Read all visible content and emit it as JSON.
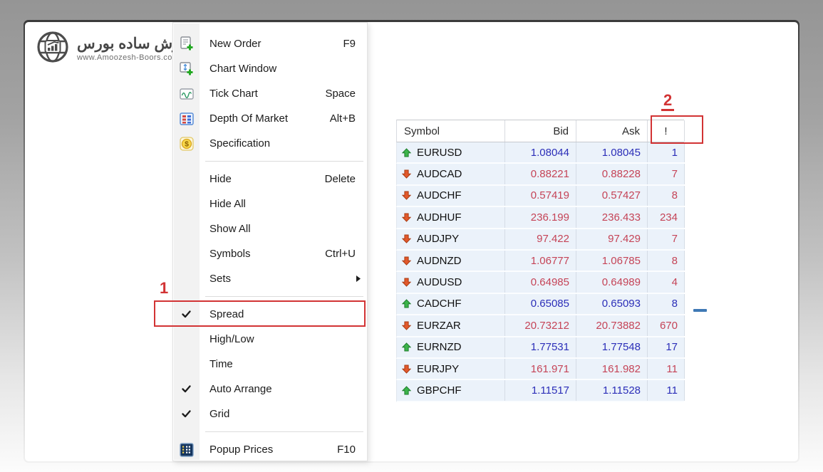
{
  "logo": {
    "title": "آموزش ساده بورس",
    "url": "www.Amoozesh-Boors.com"
  },
  "annotations": {
    "menu_highlight_label": "1",
    "column_highlight_label": "2"
  },
  "context_menu": {
    "sections": [
      {
        "items": [
          {
            "label": "New Order",
            "shortcut": "F9",
            "icon": "new-order-icon"
          },
          {
            "label": "Chart Window",
            "icon": "chart-window-icon"
          },
          {
            "label": "Tick Chart",
            "shortcut": "Space",
            "icon": "tick-chart-icon"
          },
          {
            "label": "Depth Of Market",
            "shortcut": "Alt+B",
            "icon": "depth-of-market-icon"
          },
          {
            "label": "Specification",
            "icon": "specification-icon"
          }
        ]
      },
      {
        "items": [
          {
            "label": "Hide",
            "shortcut": "Delete"
          },
          {
            "label": "Hide All"
          },
          {
            "label": "Show All"
          },
          {
            "label": "Symbols",
            "shortcut": "Ctrl+U"
          },
          {
            "label": "Sets",
            "submenu": true
          }
        ]
      },
      {
        "items": [
          {
            "label": "Spread",
            "checked": true
          },
          {
            "label": "High/Low"
          },
          {
            "label": "Time"
          },
          {
            "label": "Auto Arrange",
            "checked": true
          },
          {
            "label": "Grid",
            "checked": true
          }
        ]
      },
      {
        "items": [
          {
            "label": "Popup Prices",
            "shortcut": "F10",
            "icon": "popup-prices-icon"
          }
        ]
      }
    ]
  },
  "market_watch": {
    "columns": [
      "Symbol",
      "Bid",
      "Ask",
      "!"
    ],
    "rows": [
      {
        "symbol": "EURUSD",
        "bid": "1.08044",
        "ask": "1.08045",
        "spread": "1",
        "direction": "up"
      },
      {
        "symbol": "AUDCAD",
        "bid": "0.88221",
        "ask": "0.88228",
        "spread": "7",
        "direction": "down"
      },
      {
        "symbol": "AUDCHF",
        "bid": "0.57419",
        "ask": "0.57427",
        "spread": "8",
        "direction": "down"
      },
      {
        "symbol": "AUDHUF",
        "bid": "236.199",
        "ask": "236.433",
        "spread": "234",
        "direction": "down"
      },
      {
        "symbol": "AUDJPY",
        "bid": "97.422",
        "ask": "97.429",
        "spread": "7",
        "direction": "down"
      },
      {
        "symbol": "AUDNZD",
        "bid": "1.06777",
        "ask": "1.06785",
        "spread": "8",
        "direction": "down"
      },
      {
        "symbol": "AUDUSD",
        "bid": "0.64985",
        "ask": "0.64989",
        "spread": "4",
        "direction": "down"
      },
      {
        "symbol": "CADCHF",
        "bid": "0.65085",
        "ask": "0.65093",
        "spread": "8",
        "direction": "up"
      },
      {
        "symbol": "EURZAR",
        "bid": "20.73212",
        "ask": "20.73882",
        "spread": "670",
        "direction": "down"
      },
      {
        "symbol": "EURNZD",
        "bid": "1.77531",
        "ask": "1.77548",
        "spread": "17",
        "direction": "up"
      },
      {
        "symbol": "EURJPY",
        "bid": "161.971",
        "ask": "161.982",
        "spread": "11",
        "direction": "down"
      },
      {
        "symbol": "GBPCHF",
        "bid": "1.11517",
        "ask": "1.11528",
        "spread": "11",
        "direction": "up"
      }
    ]
  },
  "colors": {
    "annotation_red": "#d23334",
    "up_blue": "#2b2eb8",
    "down_red": "#c54457",
    "arrow_up_green": "#3cb44a",
    "arrow_down_orange": "#e2582b",
    "row_bg": "#ebf2fa"
  }
}
